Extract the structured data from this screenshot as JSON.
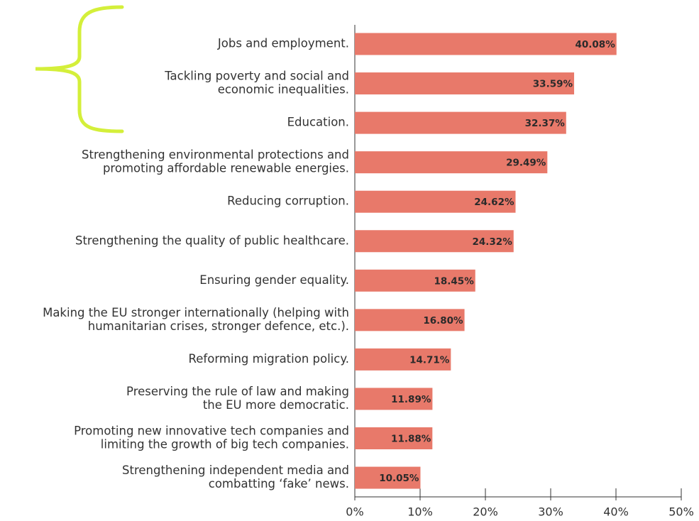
{
  "chart_data": {
    "type": "bar",
    "orientation": "horizontal",
    "color": "#e8796a",
    "categories": [
      [
        "Jobs and employment."
      ],
      [
        "Tackling poverty and social and",
        "economic inequalities."
      ],
      [
        "Education."
      ],
      [
        "Strengthening environmental protections and",
        "promoting affordable renewable energies."
      ],
      [
        "Reducing corruption."
      ],
      [
        "Strengthening the quality of public healthcare."
      ],
      [
        "Ensuring gender equality."
      ],
      [
        "Making the EU stronger internationally (helping with",
        "humanitarian crises, stronger defence, etc.)."
      ],
      [
        "Reforming migration policy."
      ],
      [
        "Preserving the rule of law and making",
        "the EU more democratic."
      ],
      [
        "Promoting new innovative tech companies and",
        "limiting the growth of big tech companies."
      ],
      [
        "Strengthening independent media and",
        "combatting ‘fake’ news."
      ]
    ],
    "values": [
      40.08,
      33.59,
      32.37,
      29.49,
      24.62,
      24.32,
      18.45,
      16.8,
      14.71,
      11.89,
      11.88,
      10.05
    ],
    "value_labels": [
      "40.08%",
      "33.59%",
      "32.37%",
      "29.49%",
      "24.62%",
      "24.32%",
      "18.45%",
      "16.80%",
      "14.71%",
      "11.89%",
      "11.88%",
      "10.05%"
    ],
    "xlim": [
      0,
      50
    ],
    "xticks": [
      {
        "value": 0,
        "label": "0%"
      },
      {
        "value": 10,
        "label": "10%"
      },
      {
        "value": 20,
        "label": "20%"
      },
      {
        "value": 30,
        "label": "30%"
      },
      {
        "value": 40,
        "label": "40%"
      },
      {
        "value": 50,
        "label": "50%"
      }
    ]
  }
}
